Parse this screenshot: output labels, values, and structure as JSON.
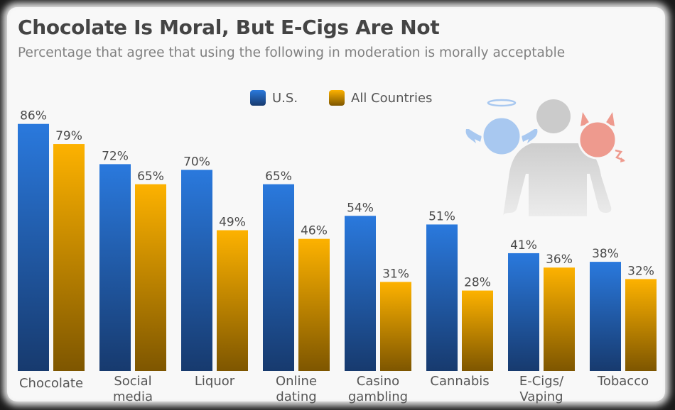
{
  "chart_data": {
    "type": "bar",
    "title": "Chocolate Is Moral, But E-Cigs Are Not",
    "subtitle": "Percentage that agree that using the following in moderation is morally acceptable",
    "xlabel": "",
    "ylabel": "",
    "ylim": [
      0,
      100
    ],
    "grid": false,
    "legend_position": "top-center",
    "categories": [
      "Chocolate",
      "Social\nmedia",
      "Liquor",
      "Online\ndating",
      "Casino\ngambling",
      "Cannabis",
      "E-Cigs/\nVaping",
      "Tobacco"
    ],
    "series": [
      {
        "name": "U.S.",
        "color_top": "#2a79dd",
        "color_bottom": "#173a6e",
        "values": [
          86,
          72,
          70,
          65,
          54,
          51,
          41,
          38
        ]
      },
      {
        "name": "All Countries",
        "color_top": "#fdb200",
        "color_bottom": "#7e5600",
        "values": [
          79,
          65,
          49,
          46,
          31,
          28,
          36,
          32
        ]
      }
    ],
    "value_suffix": "%"
  },
  "header": {
    "title": "Chocolate Is Moral, But E-Cigs Are Not",
    "subtitle": "Percentage that agree that using the following in moderation is morally acceptable"
  },
  "legend": {
    "items": [
      {
        "label": "U.S."
      },
      {
        "label": "All Countries"
      }
    ]
  },
  "illustration": {
    "icon": "person-with-angel-and-devil-icon",
    "colors": {
      "person": "#cccccc",
      "angel": "#a8c8f0",
      "devil": "#ee9a8e"
    }
  }
}
